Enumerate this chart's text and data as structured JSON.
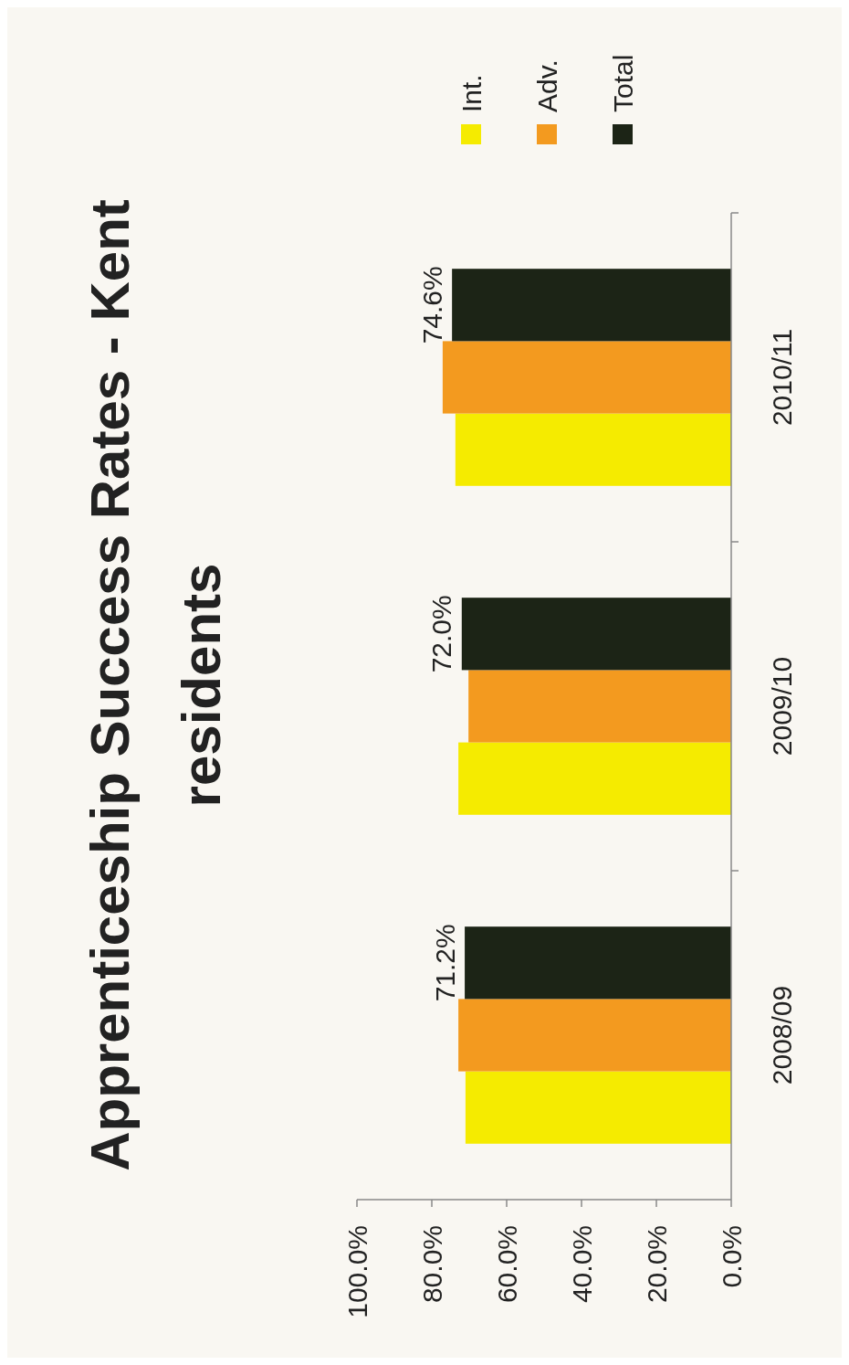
{
  "chart_data": {
    "type": "bar",
    "orientation": "horizontal",
    "title": "Apprenticeship Success Rates - Kent residents",
    "categories": [
      "2010/11",
      "2009/10",
      "2008/09"
    ],
    "series": [
      {
        "name": "Int.",
        "color": "#f5eb00",
        "values": [
          73.7,
          72.9,
          71.0
        ]
      },
      {
        "name": "Adv.",
        "color": "#f39a1f",
        "values": [
          77.1,
          70.2,
          72.9
        ]
      },
      {
        "name": "Total",
        "color": "#1c2416",
        "values": [
          74.6,
          72.0,
          71.2
        ],
        "value_labels": [
          "74.6%",
          "72.0%",
          "71.2%"
        ]
      }
    ],
    "xlim": [
      100,
      0
    ],
    "xticks": [
      {
        "value": 100,
        "label": "100.0%"
      },
      {
        "value": 80,
        "label": "80.0%"
      },
      {
        "value": 60,
        "label": "60.0%"
      },
      {
        "value": 40,
        "label": "40.0%"
      },
      {
        "value": 20,
        "label": "20.0%"
      },
      {
        "value": 0,
        "label": "0.0%"
      }
    ],
    "grid": false,
    "legend": "top right"
  }
}
